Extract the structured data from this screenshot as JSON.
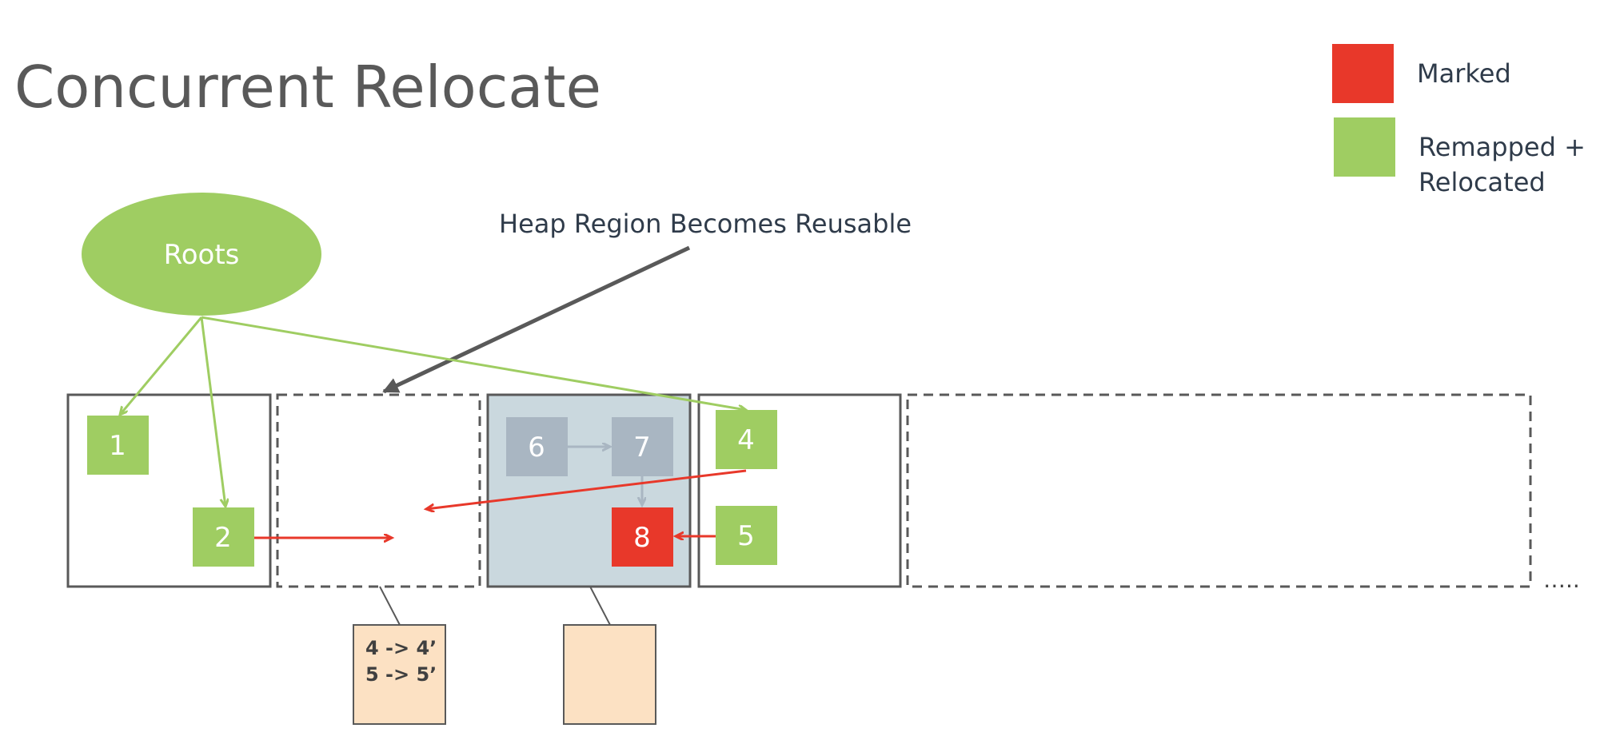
{
  "title": "Concurrent Relocate",
  "callout": "Heap Region Becomes Reusable",
  "legend": [
    {
      "label": "Marked",
      "color": "#e8382a"
    },
    {
      "label_lines": [
        "Remapped +",
        "Relocated"
      ],
      "color": "#9fcd62"
    }
  ],
  "roots": {
    "label": "Roots"
  },
  "objects": {
    "o1": "1",
    "o2": "2",
    "o4": "4",
    "o5": "5",
    "o6": "6",
    "o7": "7",
    "o8": "8"
  },
  "forwarding_table": [
    "4 -> 4’",
    "5 -> 5’"
  ],
  "more": "….."
}
